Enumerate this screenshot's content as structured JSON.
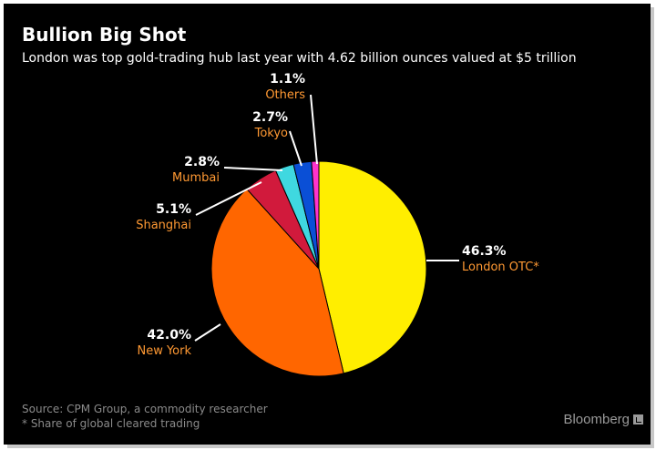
{
  "header": {
    "title": "Bullion Big Shot",
    "subtitle": "London was top gold-trading hub last year with 4.62 billion ounces valued at $5 trillion"
  },
  "footer": {
    "source": "Source: CPM Group, a commodity researcher",
    "footnote": "* Share of global cleared trading",
    "brand": "Bloomberg"
  },
  "chart_data": {
    "type": "pie",
    "title": "Bullion Big Shot",
    "slices": [
      {
        "label": "London OTC*",
        "value": 46.3,
        "value_label": "46.3%",
        "color": "#ffee00"
      },
      {
        "label": "New York",
        "value": 42.0,
        "value_label": "42.0%",
        "color": "#ff6600"
      },
      {
        "label": "Shanghai",
        "value": 5.1,
        "value_label": "5.1%",
        "color": "#d11a3c"
      },
      {
        "label": "Mumbai",
        "value": 2.8,
        "value_label": "2.8%",
        "color": "#3fd8e0"
      },
      {
        "label": "Tokyo",
        "value": 2.7,
        "value_label": "2.7%",
        "color": "#0a4fd6"
      },
      {
        "label": "Others",
        "value": 1.1,
        "value_label": "1.1%",
        "color": "#ff33cc"
      }
    ]
  },
  "colors": {
    "background": "#000000",
    "text": "#ffffff",
    "label_accent": "#ff9933",
    "source_text": "#8a8a8a"
  }
}
